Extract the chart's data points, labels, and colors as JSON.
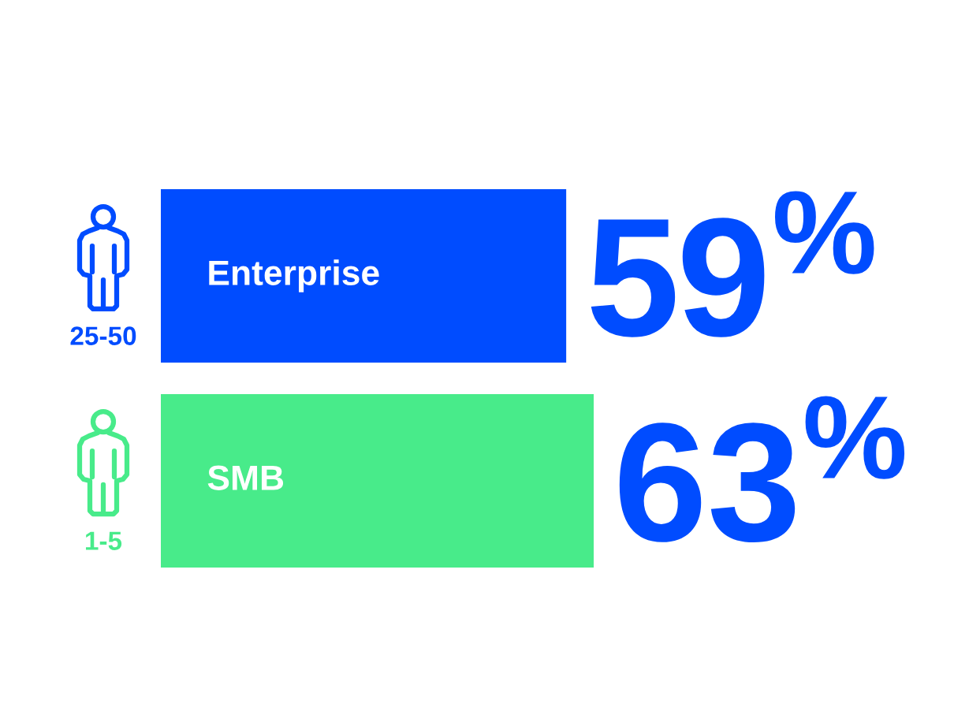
{
  "chart_data": {
    "type": "bar",
    "orientation": "horizontal",
    "categories": [
      "Enterprise",
      "SMB"
    ],
    "values": [
      59,
      63
    ],
    "colors": [
      "#004cff",
      "#48eb8a"
    ],
    "value_labels": [
      "59$^{%}$",
      "63$^{%}$"
    ],
    "tick_labels": "y",
    "annotations": [
      "25-50",
      "1-5"
    ]
  }
}
